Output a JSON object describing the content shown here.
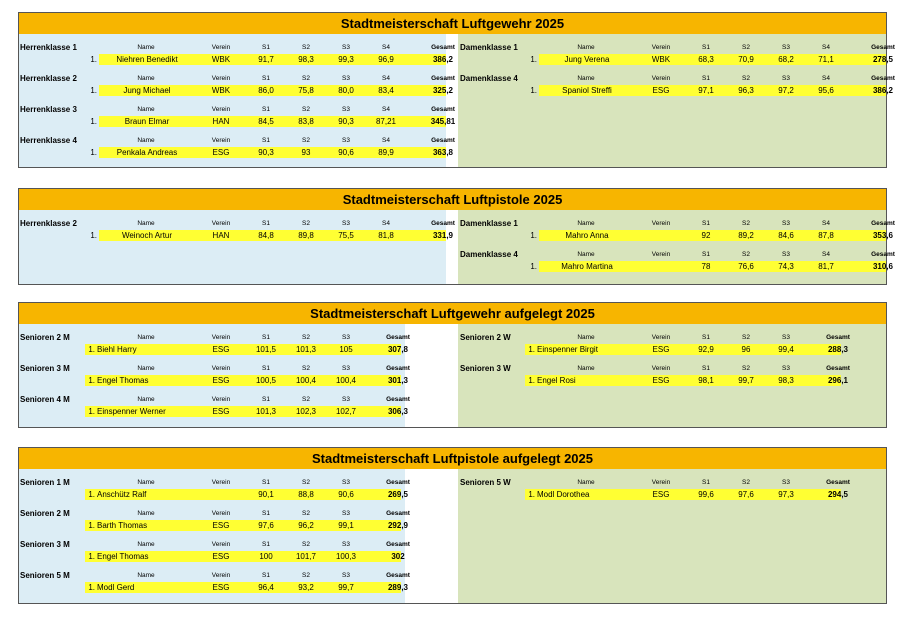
{
  "sections": [
    {
      "title": "Stadtmeisterschaft Luftgewehr 2025",
      "headers": [
        "Name",
        "Verein",
        "S1",
        "S2",
        "S3",
        "S4",
        "Gesamt"
      ],
      "left": [
        {
          "label": "Herrenklasse 1",
          "rank": "1.",
          "name": "Niehren Benedikt",
          "club": "WBK",
          "scores": [
            "91,7",
            "98,3",
            "99,3",
            "96,9"
          ],
          "total": "386,2"
        },
        {
          "label": "Herrenklasse 2",
          "rank": "1.",
          "name": "Jung Michael",
          "club": "WBK",
          "scores": [
            "86,0",
            "75,8",
            "80,0",
            "83,4"
          ],
          "total": "325,2"
        },
        {
          "label": "Herrenklasse 3",
          "rank": "1.",
          "name": "Braun Elmar",
          "club": "HAN",
          "scores": [
            "84,5",
            "83,8",
            "90,3",
            "87,21"
          ],
          "total": "345,81"
        },
        {
          "label": "Herrenklasse 4",
          "rank": "1.",
          "name": "Penkala Andreas",
          "club": "ESG",
          "scores": [
            "90,3",
            "93",
            "90,6",
            "89,9"
          ],
          "total": "363,8"
        }
      ],
      "right": [
        {
          "label": "Damenklasse 1",
          "rank": "1.",
          "name": "Jung Verena",
          "club": "WBK",
          "scores": [
            "68,3",
            "70,9",
            "68,2",
            "71,1"
          ],
          "total": "278,5"
        },
        {
          "label": "Damenklasse 4",
          "rank": "1.",
          "name": "Spaniol Streffi",
          "club": "ESG",
          "scores": [
            "97,1",
            "96,3",
            "97,2",
            "95,6"
          ],
          "total": "386,2"
        }
      ]
    },
    {
      "title": "Stadtmeisterschaft Luftpistole 2025",
      "headers": [
        "Name",
        "Verein",
        "S1",
        "S2",
        "S3",
        "S4",
        "Gesamt"
      ],
      "left": [
        {
          "label": "Herrenklasse 2",
          "rank": "1.",
          "name": "Weinoch Artur",
          "club": "HAN",
          "scores": [
            "84,8",
            "89,8",
            "75,5",
            "81,8"
          ],
          "total": "331,9"
        }
      ],
      "right": [
        {
          "label": "Damenklasse 1",
          "rank": "1.",
          "name": "Mahro Anna",
          "club": null,
          "scores": [
            "92",
            "89,2",
            "84,6",
            "87,8"
          ],
          "total": "353,6"
        },
        {
          "label": "Damenklasse 4",
          "rank": "1.",
          "name": "Mahro Martina",
          "club": null,
          "scores": [
            "78",
            "76,6",
            "74,3",
            "81,7"
          ],
          "total": "310,6"
        }
      ]
    },
    {
      "title": "Stadtmeisterschaft Luftgewehr aufgelegt 2025",
      "headers": [
        "Name",
        "Verein",
        "S1",
        "S2",
        "S3",
        "Gesamt"
      ],
      "left": [
        {
          "label": "Senioren 2 M",
          "rank": "1.",
          "name": "Biehl Harry",
          "club": "ESG",
          "scores": [
            "101,5",
            "101,3",
            "105"
          ],
          "total": "307,8"
        },
        {
          "label": "Senioren 3 M",
          "rank": "1.",
          "name": "Engel Thomas",
          "club": "ESG",
          "scores": [
            "100,5",
            "100,4",
            "100,4"
          ],
          "total": "301,3"
        },
        {
          "label": "Senioren 4 M",
          "rank": "1.",
          "name": "Einspenner Werner",
          "club": "ESG",
          "scores": [
            "101,3",
            "102,3",
            "102,7"
          ],
          "total": "306,3"
        }
      ],
      "right": [
        {
          "label": "Senioren 2 W",
          "rank": "1.",
          "name": "Einspenner Birgit",
          "club": "ESG",
          "scores": [
            "92,9",
            "96",
            "99,4"
          ],
          "total": "288,3"
        },
        {
          "label": "Senioren 3 W",
          "rank": "1.",
          "name": "Engel Rosi",
          "club": "ESG",
          "scores": [
            "98,1",
            "99,7",
            "98,3"
          ],
          "total": "296,1"
        }
      ]
    },
    {
      "title": "Stadtmeisterschaft Luftpistole aufgelegt 2025",
      "headers": [
        "Name",
        "Verein",
        "S1",
        "S2",
        "S3",
        "Gesamt"
      ],
      "left": [
        {
          "label": "Senioren 1 M",
          "rank": "1.",
          "name": "Anschütz Ralf",
          "club": null,
          "scores": [
            "90,1",
            "88,8",
            "90,6"
          ],
          "total": "269,5"
        },
        {
          "label": "Senioren 2 M",
          "rank": "1.",
          "name": "Barth Thomas",
          "club": "ESG",
          "scores": [
            "97,6",
            "96,2",
            "99,1"
          ],
          "total": "292,9"
        },
        {
          "label": "Senioren 3 M",
          "rank": "1.",
          "name": "Engel Thomas",
          "club": "ESG",
          "scores": [
            "100",
            "101,7",
            "100,3"
          ],
          "total": "302"
        },
        {
          "label": "Senioren 5 M",
          "rank": "1.",
          "name": "Modl Gerd",
          "club": "ESG",
          "scores": [
            "96,4",
            "93,2",
            "99,7"
          ],
          "total": "289,3"
        }
      ],
      "right": [
        {
          "label": "Senioren 5 W",
          "rank": "1.",
          "name": "Modl Dorothea",
          "club": "ESG",
          "scores": [
            "99,6",
            "97,6",
            "97,3"
          ],
          "total": "294,5"
        }
      ]
    }
  ]
}
